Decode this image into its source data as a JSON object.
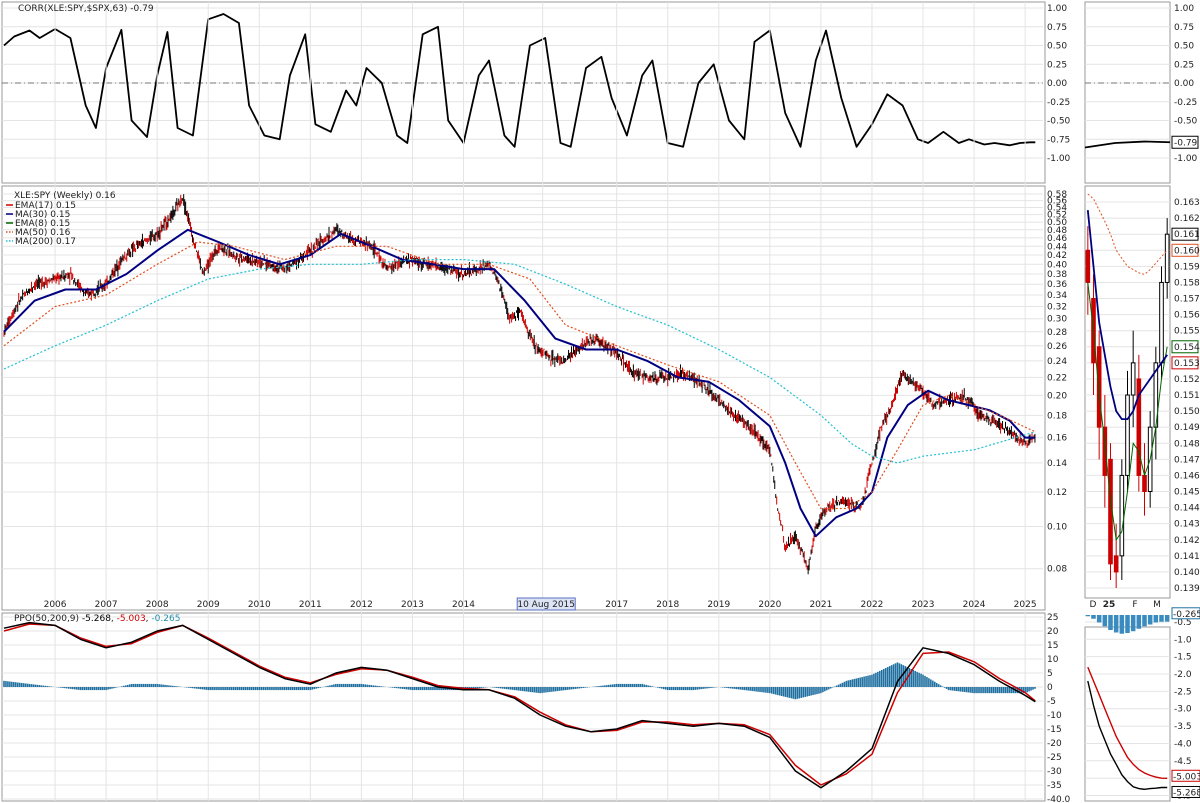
{
  "chart_data": [
    {
      "type": "line",
      "panel": "correlation",
      "title": "CORR(XLE:SPY,$SPX,63) -0.79",
      "ylim": [
        -1,
        1
      ],
      "yticks": [
        "1.00",
        "0.75",
        "0.50",
        "0.25",
        "0.00",
        "-0.25",
        "-0.50",
        "-0.75",
        "-1.00"
      ],
      "last_value": "-0.79",
      "series": [
        {
          "name": "CORR(XLE:SPY,$SPX,63)",
          "color": "#000000",
          "x": [
            2005.0,
            2005.2,
            2005.5,
            2005.7,
            2006.0,
            2006.3,
            2006.6,
            2006.8,
            2007.0,
            2007.3,
            2007.5,
            2007.8,
            2008.0,
            2008.2,
            2008.4,
            2008.7,
            2009.0,
            2009.3,
            2009.6,
            2009.8,
            2010.1,
            2010.4,
            2010.6,
            2010.9,
            2011.1,
            2011.4,
            2011.7,
            2011.9,
            2012.1,
            2012.4,
            2012.7,
            2012.9,
            2013.2,
            2013.5,
            2013.7,
            2014.0,
            2014.3,
            2014.5,
            2014.8,
            2015.0,
            2015.3,
            2015.6,
            2015.9,
            2016.1,
            2016.4,
            2016.7,
            2016.9,
            2017.2,
            2017.5,
            2017.7,
            2018.0,
            2018.3,
            2018.6,
            2018.9,
            2019.2,
            2019.5,
            2019.7,
            2020.0,
            2020.3,
            2020.6,
            2020.9,
            2021.1,
            2021.4,
            2021.7,
            2022.0,
            2022.3,
            2022.6,
            2022.9,
            2023.1,
            2023.4,
            2023.7,
            2023.9,
            2024.2,
            2024.4,
            2024.7,
            2024.9,
            2025.1,
            2025.2
          ],
          "y": [
            0.5,
            0.62,
            0.7,
            0.6,
            0.72,
            0.6,
            -0.3,
            -0.6,
            0.2,
            0.71,
            -0.5,
            -0.72,
            0.1,
            0.68,
            -0.6,
            -0.7,
            0.85,
            0.92,
            0.8,
            -0.3,
            -0.7,
            -0.75,
            0.1,
            0.65,
            -0.55,
            -0.65,
            -0.1,
            -0.3,
            0.2,
            0.0,
            -0.7,
            -0.8,
            0.65,
            0.75,
            -0.5,
            -0.8,
            0.1,
            0.3,
            -0.7,
            -0.85,
            0.5,
            0.6,
            -0.8,
            -0.85,
            0.2,
            0.35,
            -0.2,
            -0.7,
            0.1,
            0.3,
            -0.8,
            -0.85,
            0.0,
            0.25,
            -0.5,
            -0.75,
            0.55,
            0.7,
            -0.4,
            -0.85,
            0.3,
            0.7,
            -0.2,
            -0.85,
            -0.55,
            -0.15,
            -0.3,
            -0.75,
            -0.8,
            -0.65,
            -0.8,
            -0.75,
            -0.82,
            -0.8,
            -0.83,
            -0.8,
            -0.79,
            -0.79
          ]
        }
      ]
    },
    {
      "type": "line",
      "panel": "price",
      "title": "XLE:SPY (Weekly) 0.16",
      "ylim": [
        0.07,
        0.58
      ],
      "yscale": "log",
      "yticks": [
        "0.58",
        "0.56",
        "0.54",
        "0.52",
        "0.50",
        "0.48",
        "0.46",
        "0.44",
        "0.42",
        "0.40",
        "0.38",
        "0.36",
        "0.34",
        "0.32",
        "0.30",
        "0.28",
        "0.26",
        "0.24",
        "0.22",
        "0.20",
        "0.18",
        "0.16",
        "0.14",
        "0.12",
        "0.10",
        "0.08"
      ],
      "xticks": [
        "2006",
        "2007",
        "2008",
        "2009",
        "2010",
        "2011",
        "2012",
        "2013",
        "2014",
        "20",
        "2017",
        "2018",
        "2019",
        "2020",
        "2021",
        "2022",
        "2023",
        "2024",
        "2025"
      ],
      "cursor_label": "10 Aug 2015",
      "legend": [
        {
          "label": "EMA(17) 0.15",
          "color": "#cc0000",
          "style": "solid"
        },
        {
          "label": "MA(30) 0.15",
          "color": "#000080",
          "style": "solid"
        },
        {
          "label": "EMA(8) 0.15",
          "color": "#006400",
          "style": "solid"
        },
        {
          "label": "MA(50) 0.16",
          "color": "#e05020",
          "style": "dotted"
        },
        {
          "label": "MA(200) 0.17",
          "color": "#20c0d0",
          "style": "dotted"
        }
      ],
      "series": [
        {
          "name": "XLE:SPY",
          "color": "#000000",
          "x": [
            2005.0,
            2005.3,
            2005.6,
            2006.0,
            2006.3,
            2006.6,
            2007.0,
            2007.3,
            2007.6,
            2008.0,
            2008.3,
            2008.5,
            2008.7,
            2008.9,
            2009.2,
            2009.5,
            2009.8,
            2010.2,
            2010.5,
            2010.9,
            2011.2,
            2011.5,
            2011.8,
            2012.2,
            2012.5,
            2012.9,
            2013.3,
            2013.7,
            2014.0,
            2014.3,
            2014.5,
            2014.7,
            2014.9,
            2015.1,
            2015.4,
            2015.7,
            2016.0,
            2016.3,
            2016.6,
            2017.0,
            2017.3,
            2017.6,
            2018.0,
            2018.3,
            2018.6,
            2019.0,
            2019.3,
            2019.6,
            2020.0,
            2020.15,
            2020.3,
            2020.5,
            2020.75,
            2020.9,
            2021.1,
            2021.4,
            2021.8,
            2022.0,
            2022.2,
            2022.4,
            2022.6,
            2022.9,
            2023.2,
            2023.5,
            2023.8,
            2024.1,
            2024.4,
            2024.7,
            2025.0,
            2025.2
          ],
          "y": [
            0.28,
            0.33,
            0.36,
            0.37,
            0.38,
            0.34,
            0.36,
            0.41,
            0.44,
            0.47,
            0.52,
            0.57,
            0.46,
            0.38,
            0.44,
            0.42,
            0.41,
            0.4,
            0.39,
            0.42,
            0.45,
            0.48,
            0.46,
            0.44,
            0.39,
            0.41,
            0.4,
            0.39,
            0.38,
            0.39,
            0.4,
            0.36,
            0.3,
            0.31,
            0.26,
            0.245,
            0.24,
            0.26,
            0.27,
            0.25,
            0.225,
            0.22,
            0.22,
            0.225,
            0.215,
            0.195,
            0.18,
            0.17,
            0.15,
            0.11,
            0.09,
            0.095,
            0.08,
            0.1,
            0.11,
            0.115,
            0.11,
            0.14,
            0.17,
            0.19,
            0.225,
            0.21,
            0.19,
            0.195,
            0.2,
            0.18,
            0.175,
            0.165,
            0.155,
            0.16
          ]
        },
        {
          "name": "MA(30)",
          "color": "#000080",
          "x": [
            2005.0,
            2005.6,
            2006.2,
            2006.8,
            2007.4,
            2008.0,
            2008.6,
            2009.2,
            2009.8,
            2010.4,
            2011.0,
            2011.6,
            2012.2,
            2012.8,
            2013.4,
            2014.0,
            2014.6,
            2015.2,
            2015.8,
            2016.4,
            2017.0,
            2017.6,
            2018.2,
            2018.8,
            2019.4,
            2020.0,
            2020.3,
            2020.6,
            2020.9,
            2021.3,
            2021.7,
            2022.0,
            2022.3,
            2022.7,
            2023.1,
            2023.5,
            2023.9,
            2024.3,
            2024.7,
            2025.0,
            2025.2
          ],
          "y": [
            0.28,
            0.33,
            0.35,
            0.35,
            0.38,
            0.43,
            0.48,
            0.45,
            0.42,
            0.4,
            0.42,
            0.47,
            0.44,
            0.41,
            0.4,
            0.39,
            0.39,
            0.33,
            0.27,
            0.255,
            0.255,
            0.24,
            0.22,
            0.215,
            0.195,
            0.17,
            0.14,
            0.11,
            0.095,
            0.105,
            0.11,
            0.12,
            0.16,
            0.19,
            0.205,
            0.195,
            0.19,
            0.185,
            0.175,
            0.16,
            0.16
          ]
        },
        {
          "name": "MA(50)",
          "color": "#e05020",
          "x": [
            2005.0,
            2006.0,
            2007.0,
            2008.0,
            2008.8,
            2009.5,
            2010.5,
            2011.5,
            2012.5,
            2013.5,
            2014.5,
            2015.3,
            2016.0,
            2017.0,
            2018.0,
            2019.0,
            2020.0,
            2020.5,
            2021.0,
            2021.5,
            2022.0,
            2022.5,
            2023.0,
            2023.5,
            2024.0,
            2024.5,
            2025.2
          ],
          "y": [
            0.26,
            0.32,
            0.34,
            0.4,
            0.45,
            0.44,
            0.41,
            0.44,
            0.44,
            0.4,
            0.4,
            0.37,
            0.29,
            0.26,
            0.235,
            0.215,
            0.18,
            0.14,
            0.11,
            0.11,
            0.12,
            0.15,
            0.19,
            0.2,
            0.19,
            0.18,
            0.165
          ]
        },
        {
          "name": "MA(200)",
          "color": "#20c0d0",
          "x": [
            2005.0,
            2006.0,
            2007.0,
            2008.0,
            2009.0,
            2010.0,
            2011.0,
            2012.0,
            2013.0,
            2014.0,
            2015.0,
            2016.0,
            2017.0,
            2018.0,
            2019.0,
            2020.0,
            2021.0,
            2021.6,
            2022.0,
            2022.5,
            2023.0,
            2024.0,
            2025.2
          ],
          "y": [
            0.23,
            0.26,
            0.29,
            0.33,
            0.37,
            0.39,
            0.4,
            0.4,
            0.41,
            0.41,
            0.4,
            0.36,
            0.32,
            0.29,
            0.255,
            0.22,
            0.18,
            0.155,
            0.145,
            0.14,
            0.145,
            0.15,
            0.165
          ]
        }
      ]
    },
    {
      "type": "line",
      "panel": "ppo",
      "title": "PPO(50,200,9) -5.268, -5.003, -0.265",
      "title_parts": {
        "prefix": "PPO(50,200,9) ",
        "ppo": "-5.268",
        "signal": "-5.003",
        "hist": "-0.265"
      },
      "ylim": [
        -40,
        25
      ],
      "yticks": [
        "25",
        "20",
        "15",
        "10",
        "5",
        "0",
        "-5",
        "-10",
        "-15",
        "-20",
        "-25",
        "-30",
        "-35",
        "-40.0"
      ],
      "series": [
        {
          "name": "PPO",
          "color": "#000000",
          "x": [
            2005.0,
            2005.5,
            2006.0,
            2006.5,
            2007.0,
            2007.5,
            2008.0,
            2008.5,
            2009.0,
            2009.5,
            2010.0,
            2010.5,
            2011.0,
            2011.5,
            2012.0,
            2012.5,
            2013.0,
            2013.5,
            2014.0,
            2014.5,
            2015.0,
            2015.5,
            2016.0,
            2016.5,
            2017.0,
            2017.5,
            2018.0,
            2018.5,
            2019.0,
            2019.5,
            2020.0,
            2020.5,
            2021.0,
            2021.5,
            2022.0,
            2022.5,
            2023.0,
            2023.5,
            2024.0,
            2024.5,
            2025.0,
            2025.2
          ],
          "y": [
            21,
            23,
            22,
            17,
            14,
            16,
            20,
            22,
            17,
            12,
            7,
            3,
            1,
            5,
            7,
            6,
            3,
            0,
            -1,
            -1,
            -4,
            -10,
            -14,
            -16,
            -15,
            -12,
            -13,
            -14,
            -13,
            -14,
            -18,
            -30,
            -36,
            -30,
            -22,
            2,
            14,
            12,
            8,
            2,
            -3,
            -5.27
          ]
        },
        {
          "name": "Signal",
          "color": "#cc0000",
          "x": [
            2005.0,
            2005.5,
            2006.0,
            2006.5,
            2007.0,
            2007.5,
            2008.0,
            2008.5,
            2009.0,
            2009.5,
            2010.0,
            2010.5,
            2011.0,
            2011.5,
            2012.0,
            2012.5,
            2013.0,
            2013.5,
            2014.0,
            2014.5,
            2015.0,
            2015.5,
            2016.0,
            2016.5,
            2017.0,
            2017.5,
            2018.0,
            2018.5,
            2019.0,
            2019.5,
            2020.0,
            2020.5,
            2021.0,
            2021.5,
            2022.0,
            2022.5,
            2023.0,
            2023.5,
            2024.0,
            2024.5,
            2025.0,
            2025.2
          ],
          "y": [
            20,
            22.5,
            22,
            17.5,
            14.5,
            15.5,
            19.5,
            22,
            17.5,
            12.5,
            7.5,
            3.5,
            1.5,
            4.5,
            6.5,
            6,
            3.5,
            0.5,
            -0.5,
            -1,
            -3.5,
            -9,
            -13.5,
            -16,
            -15.5,
            -12.5,
            -12.5,
            -13.5,
            -13,
            -13.5,
            -17,
            -28,
            -35,
            -31,
            -24,
            -2,
            12,
            12.5,
            9,
            3,
            -2,
            -5.0
          ]
        }
      ]
    },
    {
      "type": "bar",
      "panel": "inset-daily",
      "xticks": [
        "D",
        "25",
        "F",
        "M"
      ],
      "price_yticks": [
        "0.163",
        "0.162",
        "0.161",
        "0.160",
        "0.159",
        "0.158",
        "0.157",
        "0.156",
        "0.155",
        "0.154",
        "0.153",
        "0.152",
        "0.151",
        "0.150",
        "0.149",
        "0.148",
        "0.147",
        "0.146",
        "0.145",
        "0.144",
        "0.143",
        "0.142",
        "0.141",
        "0.140",
        "0.139"
      ],
      "price_ylim": [
        0.139,
        0.1635
      ],
      "price_badges": [
        {
          "label": "0.161",
          "color": "#000000"
        },
        {
          "label": "0.160",
          "color": "#e05020"
        },
        {
          "label": "0.154",
          "color": "#006400"
        },
        {
          "label": "0.153",
          "color": "#cc0000"
        }
      ],
      "corr_yticks": [
        "1.00",
        "0.75",
        "0.50",
        "0.25",
        "0.00",
        "-0.25",
        "-0.50",
        "-0.75",
        "-1.00"
      ],
      "corr_badge": "-0.79",
      "ppo_yticks": [
        "-0.5",
        "-1.0",
        "-1.5",
        "-2.0",
        "-2.5",
        "-3.0",
        "-3.5",
        "-4.0",
        "-4.5",
        "-5.0",
        "-5.5"
      ],
      "ppo_ylim": [
        -5.6,
        -0.3
      ],
      "ppo_badges": [
        {
          "label": "-0.265",
          "color": "#1f6fa0"
        },
        {
          "label": "-5.003",
          "color": "#cc0000"
        },
        {
          "label": "-5.268",
          "color": "#000000"
        }
      ],
      "candles": [
        {
          "o": 0.16,
          "c": 0.158,
          "h": 0.1615,
          "l": 0.156
        },
        {
          "o": 0.157,
          "c": 0.153,
          "h": 0.1585,
          "l": 0.151
        },
        {
          "o": 0.154,
          "c": 0.149,
          "h": 0.155,
          "l": 0.147
        },
        {
          "o": 0.149,
          "c": 0.146,
          "h": 0.151,
          "l": 0.144
        },
        {
          "o": 0.147,
          "c": 0.1405,
          "h": 0.148,
          "l": 0.1395
        },
        {
          "o": 0.141,
          "c": 0.14,
          "h": 0.143,
          "l": 0.139
        },
        {
          "o": 0.141,
          "c": 0.146,
          "h": 0.147,
          "l": 0.1395
        },
        {
          "o": 0.146,
          "c": 0.151,
          "h": 0.1525,
          "l": 0.145
        },
        {
          "o": 0.151,
          "c": 0.153,
          "h": 0.155,
          "l": 0.149
        },
        {
          "o": 0.152,
          "c": 0.146,
          "h": 0.1535,
          "l": 0.145
        },
        {
          "o": 0.146,
          "c": 0.145,
          "h": 0.148,
          "l": 0.1435
        },
        {
          "o": 0.145,
          "c": 0.149,
          "h": 0.15,
          "l": 0.144
        },
        {
          "o": 0.149,
          "c": 0.153,
          "h": 0.154,
          "l": 0.147
        },
        {
          "o": 0.153,
          "c": 0.158,
          "h": 0.159,
          "l": 0.152
        },
        {
          "o": 0.158,
          "c": 0.161,
          "h": 0.162,
          "l": 0.157
        }
      ]
    }
  ]
}
